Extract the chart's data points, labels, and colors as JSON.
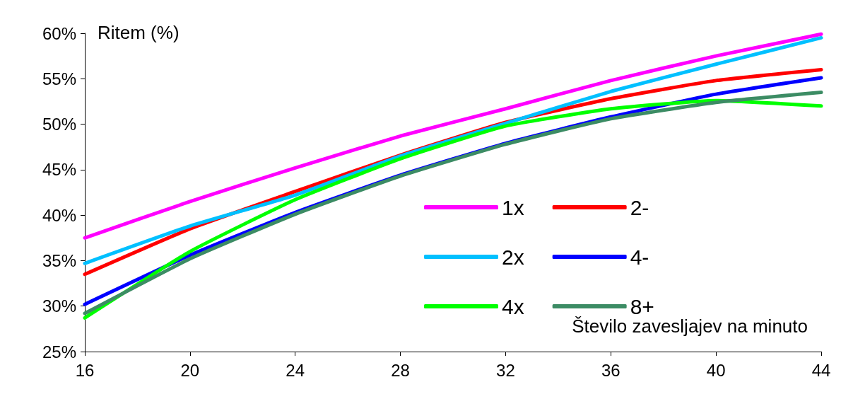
{
  "chart_data": {
    "type": "line",
    "ylabel": "Ritem (%)",
    "xlabel": "Število zavesljajev na minuto",
    "x": [
      16,
      20,
      24,
      28,
      32,
      36,
      40,
      44
    ],
    "series": [
      {
        "name": "1x",
        "color": "#ff00ff",
        "values": [
          37.5,
          41.5,
          45.2,
          48.7,
          51.7,
          54.8,
          57.5,
          59.9
        ]
      },
      {
        "name": "2-",
        "color": "#ff0000",
        "values": [
          33.5,
          38.5,
          42.6,
          46.6,
          50.2,
          52.8,
          54.8,
          56
        ]
      },
      {
        "name": "2x",
        "color": "#00c0ff",
        "values": [
          34.7,
          38.8,
          42.2,
          46.5,
          50.1,
          53.6,
          56.6,
          59.5
        ]
      },
      {
        "name": "4-",
        "color": "#0000ff",
        "values": [
          30.2,
          35.6,
          40.3,
          44.4,
          47.9,
          50.8,
          53.3,
          55.1
        ]
      },
      {
        "name": "4x",
        "color": "#00ff00",
        "values": [
          28.7,
          36,
          41.7,
          46.2,
          49.8,
          51.7,
          52.6,
          52
        ]
      },
      {
        "name": "8+",
        "color": "#3c8c64",
        "values": [
          29.2,
          35.2,
          40.1,
          44.3,
          47.8,
          50.6,
          52.4,
          53.5
        ]
      }
    ],
    "xlim": [
      16,
      44
    ],
    "xticks": [
      16,
      20,
      24,
      28,
      32,
      36,
      40,
      44
    ],
    "ylim": [
      25,
      60
    ],
    "yticks": [
      {
        "value": 25,
        "label": "25%"
      },
      {
        "value": 30,
        "label": "30%"
      },
      {
        "value": 35,
        "label": "35%"
      },
      {
        "value": 40,
        "label": "40%"
      },
      {
        "value": 45,
        "label": "45%"
      },
      {
        "value": 50,
        "label": "50%"
      },
      {
        "value": 55,
        "label": "55%"
      },
      {
        "value": 60,
        "label": "60%"
      }
    ],
    "grid": false,
    "legend": "right",
    "marker": "none",
    "line_style": "solid"
  }
}
